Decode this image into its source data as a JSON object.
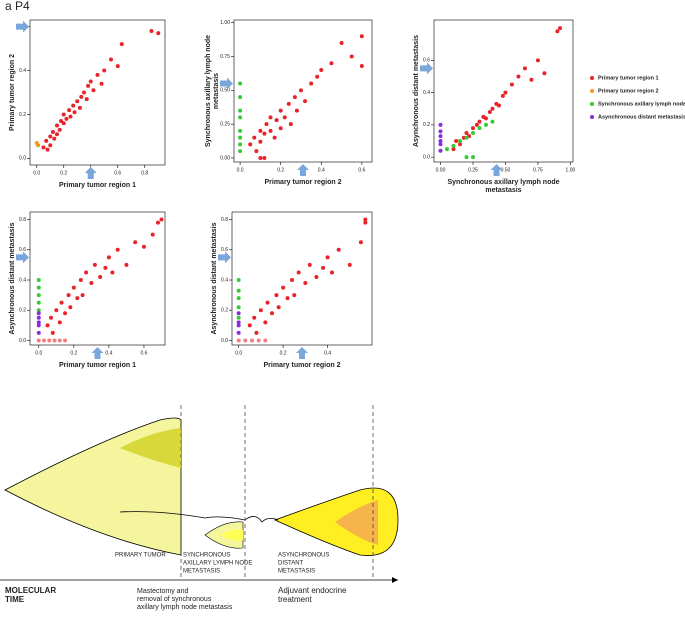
{
  "panel_label": "a P4",
  "chart_data": [
    {
      "type": "scatter",
      "xlabel": [
        "Primary tumor region 1"
      ],
      "ylabel": [
        "Primary tumor region 2"
      ],
      "xlim": [
        -0.05,
        0.95
      ],
      "ylim": [
        -0.03,
        0.63
      ],
      "xticks": [
        {
          "value": 0,
          "label": "0.0"
        },
        0.2,
        0.4,
        0.6,
        0.8
      ],
      "yticks": [
        {
          "value": 0,
          "label": "0.0"
        },
        0.2,
        0.4,
        0.6
      ],
      "series": [
        {
          "color": "#e8232a",
          "x": [
            0.05,
            0.07,
            0.08,
            0.1,
            0.1,
            0.12,
            0.13,
            0.15,
            0.15,
            0.17,
            0.18,
            0.2,
            0.2,
            0.22,
            0.24,
            0.25,
            0.27,
            0.28,
            0.3,
            0.32,
            0.33,
            0.35,
            0.37,
            0.38,
            0.4,
            0.42,
            0.45,
            0.48,
            0.5,
            0.55,
            0.6,
            0.63,
            0.85,
            0.9
          ],
          "y": [
            0.05,
            0.08,
            0.04,
            0.1,
            0.06,
            0.12,
            0.09,
            0.11,
            0.15,
            0.13,
            0.17,
            0.16,
            0.2,
            0.18,
            0.22,
            0.19,
            0.24,
            0.21,
            0.26,
            0.23,
            0.28,
            0.3,
            0.27,
            0.33,
            0.35,
            0.31,
            0.38,
            0.34,
            0.4,
            0.45,
            0.42,
            0.52,
            0.58,
            0.57
          ]
        },
        {
          "color": "#f39a1e",
          "x": [
            0.0,
            0.01
          ],
          "y": [
            0.07,
            0.06
          ]
        }
      ]
    },
    {
      "type": "scatter",
      "xlabel": [
        "Primary tumor region 2"
      ],
      "ylabel": [
        "Synchronous axillary lymph node",
        "metastasis"
      ],
      "xlim": [
        -0.03,
        0.65
      ],
      "ylim": [
        -0.03,
        1.02
      ],
      "xticks": [
        {
          "value": 0,
          "label": "0.0"
        },
        0.2,
        0.4,
        0.6
      ],
      "yticks": [
        {
          "value": 0,
          "label": "0.00"
        },
        0.25,
        {
          "value": 0.5,
          "label": "0.50"
        },
        0.75,
        {
          "value": 1,
          "label": "1.00"
        }
      ],
      "series": [
        {
          "color": "#e8232a",
          "x": [
            0.05,
            0.07,
            0.08,
            0.1,
            0.1,
            0.12,
            0.13,
            0.15,
            0.15,
            0.17,
            0.18,
            0.2,
            0.2,
            0.22,
            0.24,
            0.25,
            0.27,
            0.28,
            0.3,
            0.32,
            0.35,
            0.38,
            0.4,
            0.45,
            0.5,
            0.55,
            0.6,
            0.6,
            0.1,
            0.12
          ],
          "y": [
            0.1,
            0.15,
            0.05,
            0.2,
            0.12,
            0.18,
            0.25,
            0.2,
            0.3,
            0.15,
            0.28,
            0.22,
            0.35,
            0.3,
            0.4,
            0.25,
            0.45,
            0.35,
            0.5,
            0.42,
            0.55,
            0.6,
            0.65,
            0.7,
            0.85,
            0.75,
            0.9,
            0.68,
            0,
            0
          ]
        },
        {
          "color": "#33cc33",
          "x": [
            0,
            0,
            0,
            0,
            0,
            0,
            0,
            0
          ],
          "y": [
            0.05,
            0.1,
            0.15,
            0.2,
            0.3,
            0.35,
            0.45,
            0.55
          ]
        }
      ]
    },
    {
      "type": "scatter",
      "xlabel": [
        "Synchronous axillary lymph node",
        "metastasis"
      ],
      "ylabel": [
        "Asynchronous distant metastasis"
      ],
      "xlim": [
        -0.05,
        1.02
      ],
      "ylim": [
        -0.03,
        0.85
      ],
      "xticks": [
        {
          "value": 0,
          "label": "0.00"
        },
        0.25,
        {
          "value": 0.5,
          "label": "0.50"
        },
        0.75,
        {
          "value": 1,
          "label": "1.00"
        }
      ],
      "yticks": [
        {
          "value": 0,
          "label": "0.0"
        },
        0.2,
        0.4,
        0.6
      ],
      "series": [
        {
          "color": "#e8232a",
          "x": [
            0.1,
            0.12,
            0.15,
            0.18,
            0.2,
            0.22,
            0.25,
            0.28,
            0.3,
            0.33,
            0.35,
            0.38,
            0.4,
            0.43,
            0.45,
            0.48,
            0.5,
            0.55,
            0.6,
            0.65,
            0.7,
            0.75,
            0.8,
            0.9,
            0.92
          ],
          "y": [
            0.05,
            0.1,
            0.08,
            0.12,
            0.15,
            0.13,
            0.18,
            0.2,
            0.22,
            0.25,
            0.24,
            0.28,
            0.3,
            0.33,
            0.32,
            0.38,
            0.4,
            0.45,
            0.5,
            0.55,
            0.48,
            0.6,
            0.52,
            0.78,
            0.8
          ]
        },
        {
          "color": "#33cc33",
          "x": [
            0.05,
            0.1,
            0.15,
            0.2,
            0.25,
            0.3,
            0.35,
            0.4,
            0.2,
            0.25
          ],
          "y": [
            0.05,
            0.07,
            0.1,
            0.12,
            0.15,
            0.18,
            0.2,
            0.22,
            0,
            0
          ]
        },
        {
          "color": "#8a2be2",
          "x": [
            0,
            0,
            0,
            0,
            0,
            0
          ],
          "y": [
            0.04,
            0.08,
            0.1,
            0.13,
            0.16,
            0.2
          ]
        }
      ]
    },
    {
      "type": "scatter",
      "xlabel": [
        "Primary tumor region 1"
      ],
      "ylabel": [
        "Asynchronous distant metastasis"
      ],
      "xlim": [
        -0.05,
        0.72
      ],
      "ylim": [
        -0.03,
        0.85
      ],
      "xticks": [
        {
          "value": 0,
          "label": "0.0"
        },
        0.2,
        0.4,
        0.6
      ],
      "yticks": [
        {
          "value": 0,
          "label": "0.0"
        },
        0.2,
        0.4,
        0.6,
        0.8
      ],
      "series": [
        {
          "color": "#e8232a",
          "x": [
            0.05,
            0.07,
            0.08,
            0.1,
            0.12,
            0.13,
            0.15,
            0.17,
            0.18,
            0.2,
            0.22,
            0.24,
            0.25,
            0.27,
            0.3,
            0.32,
            0.35,
            0.38,
            0.4,
            0.42,
            0.45,
            0.5,
            0.55,
            0.6,
            0.65,
            0.68,
            0.7
          ],
          "y": [
            0.1,
            0.15,
            0.05,
            0.2,
            0.12,
            0.25,
            0.18,
            0.3,
            0.22,
            0.35,
            0.28,
            0.4,
            0.3,
            0.45,
            0.38,
            0.5,
            0.42,
            0.48,
            0.55,
            0.45,
            0.6,
            0.5,
            0.65,
            0.62,
            0.7,
            0.78,
            0.8
          ]
        },
        {
          "color": "#33cc33",
          "x": [
            0,
            0,
            0,
            0,
            0
          ],
          "y": [
            0.2,
            0.25,
            0.3,
            0.35,
            0.4
          ]
        },
        {
          "color": "#8a2be2",
          "x": [
            0,
            0,
            0,
            0,
            0
          ],
          "y": [
            0.05,
            0.1,
            0.12,
            0.15,
            0.18
          ]
        },
        {
          "color": "#f08080",
          "x": [
            0,
            0.03,
            0.06,
            0.09,
            0.12,
            0.15
          ],
          "y": [
            0,
            0,
            0,
            0,
            0,
            0
          ]
        }
      ]
    },
    {
      "type": "scatter",
      "xlabel": [
        "Primary tumor region 2"
      ],
      "ylabel": [
        "Asynchronous distant metastasis"
      ],
      "xlim": [
        -0.03,
        0.6
      ],
      "ylim": [
        -0.03,
        0.85
      ],
      "xticks": [
        {
          "value": 0,
          "label": "0.0"
        },
        0.2,
        0.4
      ],
      "yticks": [
        {
          "value": 0,
          "label": "0.0"
        },
        0.2,
        0.4,
        0.6,
        0.8
      ],
      "series": [
        {
          "color": "#e8232a",
          "x": [
            0.05,
            0.07,
            0.08,
            0.1,
            0.12,
            0.13,
            0.15,
            0.17,
            0.18,
            0.2,
            0.22,
            0.24,
            0.25,
            0.27,
            0.3,
            0.32,
            0.35,
            0.38,
            0.4,
            0.42,
            0.45,
            0.5,
            0.55,
            0.57,
            0.57
          ],
          "y": [
            0.1,
            0.15,
            0.05,
            0.2,
            0.12,
            0.25,
            0.18,
            0.3,
            0.22,
            0.35,
            0.28,
            0.4,
            0.3,
            0.45,
            0.38,
            0.5,
            0.42,
            0.48,
            0.55,
            0.45,
            0.6,
            0.5,
            0.65,
            0.78,
            0.8
          ]
        },
        {
          "color": "#33cc33",
          "x": [
            0,
            0,
            0,
            0,
            0
          ],
          "y": [
            0.15,
            0.22,
            0.28,
            0.33,
            0.4
          ]
        },
        {
          "color": "#8a2be2",
          "x": [
            0,
            0,
            0,
            0
          ],
          "y": [
            0.05,
            0.1,
            0.12,
            0.18
          ]
        },
        {
          "color": "#f08080",
          "x": [
            0,
            0.03,
            0.06,
            0.09,
            0.12
          ],
          "y": [
            0,
            0,
            0,
            0,
            0
          ]
        }
      ]
    }
  ],
  "legend": [
    {
      "name": "Primary tumor region 1",
      "color": "#e8232a"
    },
    {
      "name": "Primary tumor region 2",
      "color": "#f39a1e"
    },
    {
      "name": "Synchronous axillary lymph node metastasis",
      "color": "#33cc33"
    },
    {
      "name": "Asynchronous distant metastasis",
      "color": "#8a2be2"
    }
  ],
  "diagram": {
    "stages": [
      [
        "PRIMARY TUMOR"
      ],
      [
        "SYNCHRONOUS",
        "AXILLARY LYMPH NODE",
        "METASTASIS"
      ],
      [
        "ASYNCHRONOUS",
        "DISTANT",
        "METASTASIS"
      ]
    ],
    "timeline": [
      [
        "MOLECULAR",
        "TIME"
      ],
      [
        "Mastectomy and",
        "removal of synchronous",
        "axillary lymph node metastasis"
      ],
      [
        "Adjuvant endocrine",
        "treatment"
      ]
    ]
  }
}
